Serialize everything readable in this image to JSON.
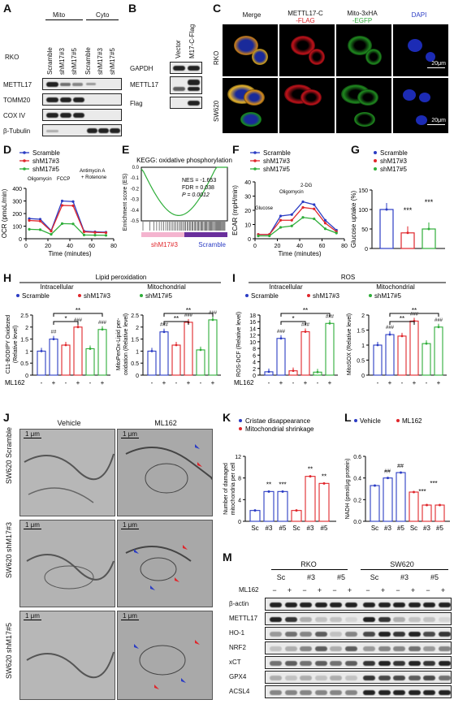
{
  "panels": {
    "A": {
      "label": "A",
      "cell_line": "RKO",
      "fractions": [
        "Mito",
        "Cyto"
      ],
      "lanes": [
        "Scramble",
        "shM17#3",
        "shM17#5",
        "Scramble",
        "shM17#3",
        "shM17#5"
      ],
      "rows": [
        "METTL17",
        "TOMM20",
        "COX IV",
        "β-Tubulin"
      ]
    },
    "B": {
      "label": "B",
      "lanes": [
        "Vector",
        "M17-C-Flag"
      ],
      "rows": [
        "GAPDH",
        "METTL17",
        "Flag"
      ]
    },
    "C": {
      "label": "C",
      "columns": [
        "Merge",
        "METTL17-C",
        "-FLAG",
        "Mito-3xHA",
        "-EGFP",
        "DAPI"
      ],
      "rows": [
        "RKO",
        "SW620"
      ],
      "scale_bar": "20μm"
    },
    "D": {
      "label": "D",
      "legend": [
        "Scramble",
        "shM17#3",
        "shM17#5"
      ],
      "annotations": [
        "Oligomycin",
        "FCCP",
        "Antimycin A",
        "+ Rotenone"
      ],
      "ylabel": "OCR (pmoL/min)",
      "xlabel": "Time (minutes)"
    },
    "E": {
      "label": "E",
      "title": "KEGG: oxidative phosphorylation",
      "nes": "NES = -1.653",
      "fdr": "FDR = 0.038",
      "p": "P = 0.0012",
      "ylabel": "Enrichment score (ES)",
      "left_label": "shM17#3",
      "right_label": "Scramble"
    },
    "F": {
      "label": "F",
      "legend": [
        "Scramble",
        "shM17#3",
        "shM17#5"
      ],
      "annotations": [
        "Glucose",
        "Oligomycin",
        "2-DG"
      ],
      "ylabel": "ECAR (mpH/min)",
      "xlabel": "Time (minutes)"
    },
    "G": {
      "label": "G",
      "legend": [
        "Scramble",
        "shM17#3",
        "shM17#5"
      ],
      "ylabel": "Glucose uptake (%)",
      "stars": [
        "***",
        "***"
      ]
    },
    "H": {
      "label": "H",
      "title": "Lipid peroxidation",
      "groups": [
        "Intracellular",
        "Mitochondrial"
      ],
      "legend": [
        "Scramble",
        "shM17#3",
        "shM17#5"
      ],
      "ylabel_left": "C11-BODIPY Oxidezed",
      "ylabel_left2": "(Relative level)",
      "ylabel_right": "MitoPerOx-Lipid per-",
      "ylabel_right2": "oxidation (Relative level)",
      "treatment": "ML162",
      "signs": [
        "-",
        "+",
        "-",
        "+",
        "-",
        "+"
      ],
      "sig_stars": [
        "*",
        "**",
        "**",
        "**"
      ],
      "sig_hash": [
        "##",
        "###",
        "###",
        "###",
        "###",
        "###"
      ]
    },
    "I": {
      "label": "I",
      "title": "ROS",
      "groups": [
        "Intracellular",
        "Mitochondrial"
      ],
      "legend": [
        "Scramble",
        "shM17#3",
        "shM17#5"
      ],
      "ylabel_left": "ROS-DCF (Relative level)",
      "ylabel_right": "MitoSOX (Relative level)",
      "treatment": "ML162",
      "signs": [
        "-",
        "+",
        "-",
        "+",
        "-",
        "+"
      ],
      "sig_stars": [
        "*",
        "**",
        "**",
        "**"
      ],
      "sig_hash": [
        "###",
        "###",
        "###",
        "###",
        "###",
        "###"
      ]
    },
    "J": {
      "label": "J",
      "columns": [
        "Vehicle",
        "ML162"
      ],
      "rows": [
        "SW620 Scramble",
        "SW620 shM17#3",
        "SW620 shM17#5"
      ],
      "scale_bar": "1 μm"
    },
    "K": {
      "label": "K",
      "legend": [
        "Cristae disappearance",
        "Mitochondrial shrinkage"
      ],
      "ylabel": "Number of damaged",
      "ylabel2": "mitochondria per cell",
      "categories": [
        "Sc",
        "#3",
        "#5",
        "Sc",
        "#3",
        "#5"
      ],
      "stars": [
        "**",
        "***",
        "**",
        "**"
      ]
    },
    "L": {
      "label": "L",
      "legend": [
        "Vehicle",
        "ML162"
      ],
      "ylabel": "NADH (pmol/μg protein)",
      "categories": [
        "Sc",
        "#3",
        "#5",
        "Sc",
        "#3",
        "#5"
      ],
      "stars": [
        "##",
        "##",
        "***",
        "***"
      ]
    },
    "M": {
      "label": "M",
      "cell_lines": [
        "RKO",
        "SW620"
      ],
      "groups": [
        "Sc",
        "#3",
        "#5",
        "Sc",
        "#3",
        "#5"
      ],
      "treatment": "ML162",
      "signs": [
        "−",
        "+",
        "−",
        "+",
        "−",
        "+",
        "−",
        "+",
        "−",
        "+",
        "−",
        "+"
      ],
      "rows": [
        "β-actin",
        "METTL17",
        "HO-1",
        "NRF2",
        "xCT",
        "GPX4",
        "ACSL4"
      ]
    }
  },
  "colors": {
    "blue": "#2b3cc4",
    "red": "#e0262b",
    "green": "#2fae3a",
    "pink": "#f4b4cf",
    "purple": "#6a2f9c"
  },
  "chart_data": [
    {
      "type": "line",
      "panel": "D",
      "x": [
        0,
        10,
        20,
        30,
        40,
        50,
        60,
        70
      ],
      "xlim": [
        0,
        80
      ],
      "ylim": [
        0,
        400
      ],
      "yticks": [
        0,
        100,
        200,
        300,
        400
      ],
      "xticks": [
        0,
        20,
        40,
        60,
        80
      ],
      "series": [
        {
          "name": "Scramble",
          "values": [
            160,
            155,
            65,
            300,
            295,
            60,
            55,
            52
          ]
        },
        {
          "name": "shM17#3",
          "values": [
            145,
            140,
            60,
            265,
            262,
            55,
            50,
            48
          ]
        },
        {
          "name": "shM17#5",
          "values": [
            75,
            72,
            35,
            120,
            118,
            30,
            28,
            27
          ]
        }
      ]
    },
    {
      "type": "line",
      "panel": "F",
      "x": [
        0,
        10,
        20,
        30,
        40,
        50,
        60,
        70
      ],
      "xlim": [
        0,
        80
      ],
      "ylim": [
        0,
        40
      ],
      "yticks": [
        0,
        10,
        20,
        30,
        40
      ],
      "xticks": [
        0,
        20,
        40,
        60,
        80
      ],
      "series": [
        {
          "name": "Scramble",
          "values": [
            3,
            3,
            16,
            17,
            26,
            24,
            13,
            6
          ]
        },
        {
          "name": "shM17#3",
          "values": [
            3,
            3,
            13,
            13,
            22,
            21,
            11,
            5
          ]
        },
        {
          "name": "shM17#5",
          "values": [
            2,
            2,
            8,
            9,
            15,
            14,
            7,
            4
          ]
        }
      ]
    },
    {
      "type": "line",
      "panel": "E",
      "ylim": [
        -0.5,
        0.0
      ],
      "yticks": [
        0.0,
        -0.1,
        -0.2,
        -0.3,
        -0.4,
        -0.5
      ]
    },
    {
      "type": "bar",
      "panel": "G",
      "categories": [
        "Scramble",
        "shM17#3",
        "shM17#5"
      ],
      "values": [
        100,
        40,
        50
      ],
      "ylim": [
        0,
        150
      ],
      "yticks": [
        0,
        50,
        100,
        150
      ]
    },
    {
      "type": "bar",
      "panel": "H-left",
      "values": [
        1.0,
        1.5,
        1.25,
        2.0,
        1.1,
        1.9
      ],
      "ylim": [
        0,
        2.5
      ],
      "yticks": [
        0,
        0.5,
        1.0,
        1.5,
        2.0,
        2.5
      ]
    },
    {
      "type": "bar",
      "panel": "H-right",
      "values": [
        1.0,
        1.8,
        1.25,
        2.2,
        1.05,
        2.3
      ],
      "ylim": [
        0,
        2.5
      ],
      "yticks": [
        0,
        0.5,
        1.0,
        1.5,
        2.0,
        2.5
      ]
    },
    {
      "type": "bar",
      "panel": "I-left",
      "values": [
        1.0,
        11,
        1.3,
        13,
        0.9,
        15.5
      ],
      "ylim": [
        0,
        18
      ],
      "yticks": [
        0,
        2,
        4,
        6,
        8,
        10,
        12,
        14,
        16,
        18
      ]
    },
    {
      "type": "bar",
      "panel": "I-right",
      "values": [
        1.0,
        1.35,
        1.3,
        1.8,
        1.05,
        1.6
      ],
      "ylim": [
        0,
        2.0
      ],
      "yticks": [
        0,
        0.5,
        1.0,
        1.5,
        2.0
      ]
    },
    {
      "type": "bar",
      "panel": "K",
      "categories": [
        "Sc",
        "#3",
        "#5",
        "Sc",
        "#3",
        "#5"
      ],
      "values": [
        2,
        5.5,
        5.5,
        2,
        8.3,
        7
      ],
      "ylim": [
        0,
        12
      ],
      "yticks": [
        0,
        4,
        8,
        12
      ]
    },
    {
      "type": "bar",
      "panel": "L",
      "categories": [
        "Sc",
        "#3",
        "#5",
        "Sc",
        "#3",
        "#5"
      ],
      "values": [
        0.33,
        0.4,
        0.45,
        0.27,
        0.15,
        0.15
      ],
      "ylim": [
        0,
        0.6
      ],
      "yticks": [
        0,
        0.2,
        0.4,
        0.6
      ]
    }
  ]
}
